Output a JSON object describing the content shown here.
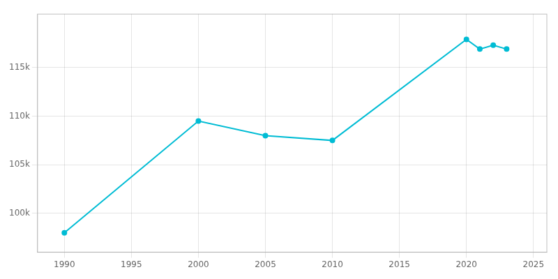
{
  "chart_data": {
    "type": "line",
    "x": [
      1990,
      2000,
      2005,
      2010,
      2020,
      2021,
      2022,
      2023
    ],
    "values": [
      98000,
      109500,
      108000,
      107500,
      117900,
      116900,
      117300,
      116900
    ],
    "color": "#00bcd4",
    "marker": "circle",
    "xlim": [
      1988,
      2026
    ],
    "xticks": [
      1990,
      1995,
      2000,
      2005,
      2010,
      2015,
      2020,
      2025
    ],
    "ylim": [
      96000,
      120500
    ],
    "yticks": [
      {
        "value": 100000,
        "label": "100k"
      },
      {
        "value": 105000,
        "label": "105k"
      },
      {
        "value": 110000,
        "label": "110k"
      },
      {
        "value": 115000,
        "label": "115k"
      }
    ],
    "grid": true
  }
}
